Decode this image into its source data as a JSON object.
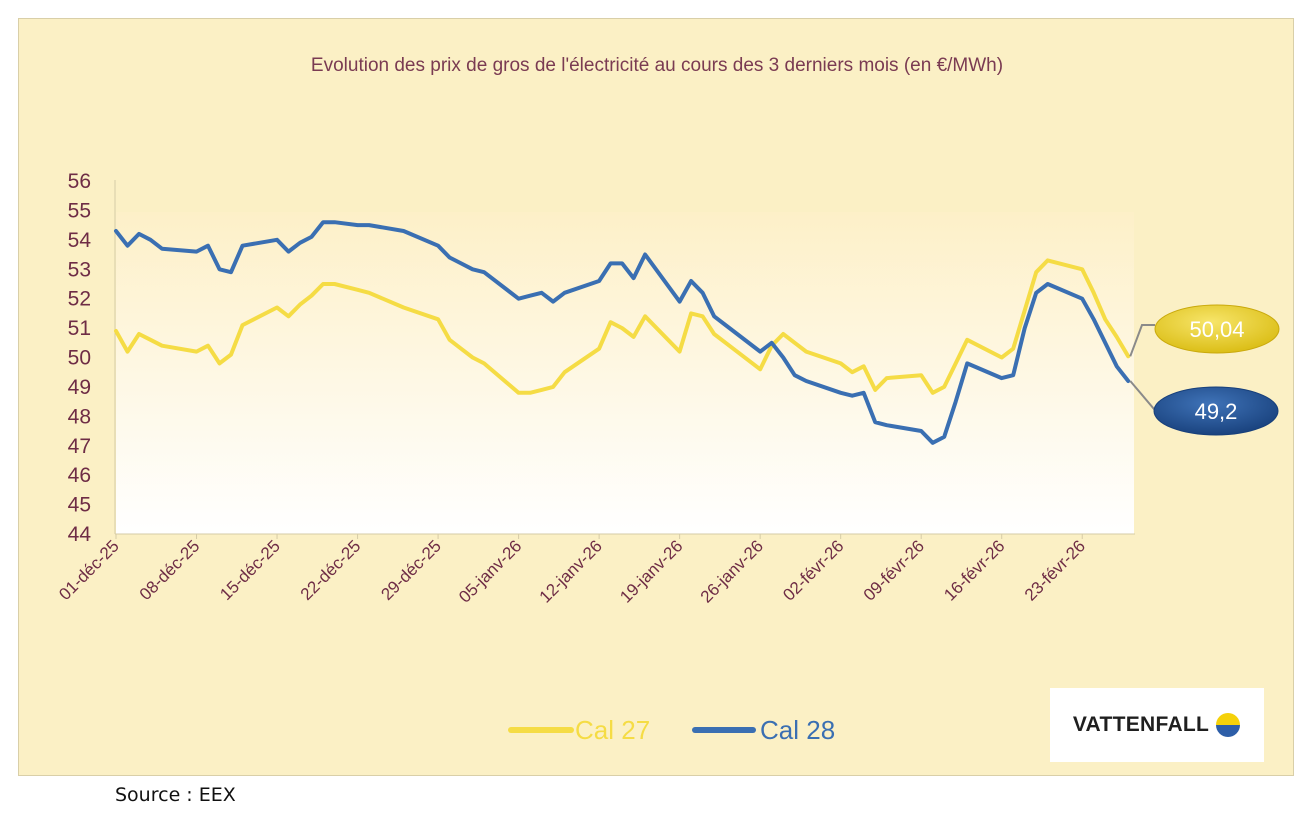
{
  "chart_data": {
    "type": "line",
    "title": "Evolution des prix de gros de l'électricité au cours des 3 derniers mois (en €/MWh)",
    "xlabel": "",
    "ylabel": "",
    "ylim": [
      44,
      56
    ],
    "yticks": [
      44,
      45,
      46,
      47,
      48,
      49,
      50,
      51,
      52,
      53,
      54,
      55,
      56
    ],
    "ytick_labels": [
      "44",
      "45",
      "46",
      "47",
      "48",
      "49",
      "50",
      "51",
      "52",
      "53",
      "54",
      "55",
      "56"
    ],
    "x_day_range": [
      0,
      88.5
    ],
    "xtick_days": [
      0,
      7,
      14,
      21,
      28,
      35,
      42,
      49,
      56,
      63,
      70,
      77,
      84
    ],
    "xtick_labels": [
      "01-déc-25",
      "08-déc-25",
      "15-déc-25",
      "22-déc-25",
      "29-déc-25",
      "05-janv-26",
      "12-janv-26",
      "19-janv-26",
      "26-janv-26",
      "02-févr-26",
      "09-févr-26",
      "16-févr-26",
      "23-févr-26"
    ],
    "grid": false,
    "legend_position": "bottom",
    "x_days": [
      0,
      1,
      2,
      3,
      4,
      7,
      8,
      9,
      10,
      11,
      14,
      15,
      16,
      17,
      18,
      19,
      21,
      22,
      25,
      28,
      29,
      30,
      31,
      32,
      35,
      36,
      37,
      38,
      39,
      42,
      43,
      44,
      45,
      46,
      49,
      50,
      51,
      52,
      53,
      56,
      57,
      58,
      59,
      60,
      63,
      64,
      65,
      66,
      67,
      70,
      71,
      72,
      73,
      74,
      77,
      78,
      79,
      80,
      81,
      84,
      85,
      86,
      87,
      88
    ],
    "series": [
      {
        "name": "Cal 27",
        "color": "#f5dc45",
        "values": [
          50.9,
          50.2,
          50.8,
          50.6,
          50.4,
          50.2,
          50.4,
          49.8,
          50.1,
          51.1,
          51.7,
          51.4,
          51.8,
          52.1,
          52.5,
          52.5,
          52.3,
          52.2,
          51.7,
          51.3,
          50.6,
          50.3,
          50.0,
          49.8,
          48.8,
          48.8,
          48.9,
          49.0,
          49.5,
          50.3,
          51.2,
          51.0,
          50.7,
          51.4,
          50.2,
          51.5,
          51.4,
          50.8,
          50.5,
          49.6,
          50.4,
          50.8,
          50.5,
          50.2,
          49.8,
          49.5,
          49.7,
          48.9,
          49.3,
          49.4,
          48.8,
          49.0,
          49.8,
          50.6,
          50.0,
          50.3,
          51.6,
          52.9,
          53.3,
          53.0,
          52.2,
          51.3,
          50.7,
          50.04
        ]
      },
      {
        "name": "Cal 28",
        "color": "#3a6fb2",
        "values": [
          54.3,
          53.8,
          54.2,
          54.0,
          53.7,
          53.6,
          53.8,
          53.0,
          52.9,
          53.8,
          54.0,
          53.6,
          53.9,
          54.1,
          54.6,
          54.6,
          54.5,
          54.5,
          54.3,
          53.8,
          53.4,
          53.2,
          53.0,
          52.9,
          52.0,
          52.1,
          52.2,
          51.9,
          52.2,
          52.6,
          53.2,
          53.2,
          52.7,
          53.5,
          51.9,
          52.6,
          52.2,
          51.4,
          51.1,
          50.2,
          50.5,
          50.0,
          49.4,
          49.2,
          48.8,
          48.7,
          48.8,
          47.8,
          47.7,
          47.5,
          47.1,
          47.3,
          48.5,
          49.8,
          49.3,
          49.4,
          51.0,
          52.2,
          52.5,
          52.0,
          51.3,
          50.5,
          49.7,
          49.2
        ]
      }
    ],
    "end_labels": [
      "50,04",
      "49,2"
    ]
  },
  "legend": {
    "cal27": "Cal 27",
    "cal28": "Cal 28"
  },
  "logo": {
    "text": "VATTENFALL",
    "colors": {
      "yellow": "#f5d10a",
      "blue": "#2d5ea8"
    }
  },
  "source": "Source : EEX"
}
